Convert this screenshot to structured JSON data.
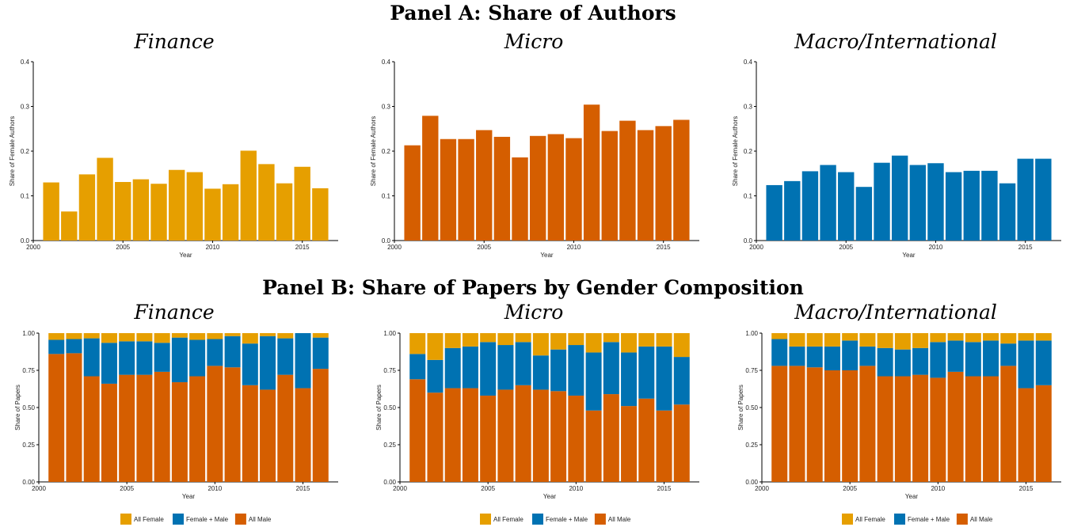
{
  "panel_a_title": "Panel A: Share of Authors",
  "panel_b_title": "Panel B: Share of Papers by Gender Composition",
  "colors": {
    "gold": "#E69F00",
    "orange": "#D55E00",
    "blue": "#0072B2"
  },
  "legend": [
    "All Female",
    "Female + Male",
    "All Male"
  ],
  "chart_data": [
    {
      "type": "bar",
      "panel": "A",
      "title": "Finance",
      "xlabel": "Year",
      "ylabel": "Share of Female Authors",
      "xlim": [
        2000,
        2017
      ],
      "ylim": [
        0,
        0.4
      ],
      "xticks": [
        2000,
        2005,
        2010,
        2015
      ],
      "yticks": [
        0.0,
        0.1,
        0.2,
        0.3,
        0.4
      ],
      "ytick_labels": [
        "0.0",
        "0.1",
        "0.2",
        "0.3",
        "0.4"
      ],
      "color": "#E69F00",
      "x": [
        2001,
        2002,
        2003,
        2004,
        2005,
        2006,
        2007,
        2008,
        2009,
        2010,
        2011,
        2012,
        2013,
        2014,
        2015,
        2016
      ],
      "values": [
        0.13,
        0.065,
        0.148,
        0.185,
        0.131,
        0.137,
        0.127,
        0.158,
        0.153,
        0.116,
        0.126,
        0.201,
        0.171,
        0.128,
        0.165,
        0.117
      ]
    },
    {
      "type": "bar",
      "panel": "A",
      "title": "Micro",
      "xlabel": "Year",
      "ylabel": "Share of Female Authors",
      "xlim": [
        2000,
        2017
      ],
      "ylim": [
        0,
        0.4
      ],
      "xticks": [
        2000,
        2005,
        2010,
        2015
      ],
      "yticks": [
        0.0,
        0.1,
        0.2,
        0.3,
        0.4
      ],
      "ytick_labels": [
        "0.0",
        "0.1",
        "0.2",
        "0.3",
        "0.4"
      ],
      "color": "#D55E00",
      "x": [
        2001,
        2002,
        2003,
        2004,
        2005,
        2006,
        2007,
        2008,
        2009,
        2010,
        2011,
        2012,
        2013,
        2014,
        2015,
        2016
      ],
      "values": [
        0.213,
        0.279,
        0.227,
        0.227,
        0.247,
        0.232,
        0.186,
        0.234,
        0.238,
        0.229,
        0.304,
        0.245,
        0.268,
        0.247,
        0.256,
        0.27
      ]
    },
    {
      "type": "bar",
      "panel": "A",
      "title": "Macro/International",
      "xlabel": "Year",
      "ylabel": "Share of Female Authors",
      "xlim": [
        2000,
        2017
      ],
      "ylim": [
        0,
        0.4
      ],
      "xticks": [
        2000,
        2005,
        2010,
        2015
      ],
      "yticks": [
        0.0,
        0.1,
        0.2,
        0.3,
        0.4
      ],
      "ytick_labels": [
        "0.0",
        "0.1",
        "0.2",
        "0.3",
        "0.4"
      ],
      "color": "#0072B2",
      "x": [
        2001,
        2002,
        2003,
        2004,
        2005,
        2006,
        2007,
        2008,
        2009,
        2010,
        2011,
        2012,
        2013,
        2014,
        2015,
        2016
      ],
      "values": [
        0.124,
        0.133,
        0.155,
        0.169,
        0.153,
        0.12,
        0.174,
        0.19,
        0.169,
        0.173,
        0.153,
        0.156,
        0.156,
        0.128,
        0.183,
        0.183
      ]
    },
    {
      "type": "bar",
      "stacked": true,
      "panel": "B",
      "title": "Finance",
      "xlabel": "Year",
      "ylabel": "Share of Papers",
      "xlim": [
        2000,
        2017
      ],
      "ylim": [
        0,
        1
      ],
      "xticks": [
        2000,
        2005,
        2010,
        2015
      ],
      "yticks": [
        0,
        0.25,
        0.5,
        0.75,
        1.0
      ],
      "ytick_labels": [
        "0.00",
        "0.25",
        "0.50",
        "0.75",
        "1.00"
      ],
      "x": [
        2001,
        2002,
        2003,
        2004,
        2005,
        2006,
        2007,
        2008,
        2009,
        2010,
        2011,
        2012,
        2013,
        2014,
        2015,
        2016
      ],
      "series": [
        {
          "name": "All Male",
          "color": "#D55E00",
          "values": [
            0.86,
            0.865,
            0.71,
            0.66,
            0.72,
            0.72,
            0.74,
            0.67,
            0.71,
            0.78,
            0.77,
            0.65,
            0.62,
            0.72,
            0.63,
            0.76
          ]
        },
        {
          "name": "Female + Male",
          "color": "#0072B2",
          "values": [
            0.095,
            0.095,
            0.255,
            0.275,
            0.225,
            0.225,
            0.195,
            0.3,
            0.245,
            0.18,
            0.21,
            0.28,
            0.36,
            0.245,
            0.37,
            0.21
          ]
        },
        {
          "name": "All Female",
          "color": "#E69F00",
          "values": [
            0.045,
            0.04,
            0.035,
            0.065,
            0.055,
            0.055,
            0.065,
            0.03,
            0.045,
            0.04,
            0.02,
            0.07,
            0.02,
            0.035,
            0.0,
            0.03
          ]
        }
      ]
    },
    {
      "type": "bar",
      "stacked": true,
      "panel": "B",
      "title": "Micro",
      "xlabel": "Year",
      "ylabel": "Share of Papers",
      "xlim": [
        2000,
        2017
      ],
      "ylim": [
        0,
        1
      ],
      "xticks": [
        2000,
        2005,
        2010,
        2015
      ],
      "yticks": [
        0,
        0.25,
        0.5,
        0.75,
        1.0
      ],
      "ytick_labels": [
        "0.00",
        "0.25",
        "0.50",
        "0.75",
        "1.00"
      ],
      "x": [
        2001,
        2002,
        2003,
        2004,
        2005,
        2006,
        2007,
        2008,
        2009,
        2010,
        2011,
        2012,
        2013,
        2014,
        2015,
        2016
      ],
      "series": [
        {
          "name": "All Male",
          "color": "#D55E00",
          "values": [
            0.69,
            0.6,
            0.63,
            0.63,
            0.58,
            0.62,
            0.65,
            0.62,
            0.61,
            0.58,
            0.48,
            0.59,
            0.51,
            0.56,
            0.48,
            0.52
          ]
        },
        {
          "name": "Female + Male",
          "color": "#0072B2",
          "values": [
            0.17,
            0.22,
            0.27,
            0.28,
            0.36,
            0.3,
            0.29,
            0.23,
            0.28,
            0.34,
            0.39,
            0.35,
            0.36,
            0.35,
            0.43,
            0.32
          ]
        },
        {
          "name": "All Female",
          "color": "#E69F00",
          "values": [
            0.14,
            0.18,
            0.1,
            0.09,
            0.06,
            0.08,
            0.06,
            0.15,
            0.11,
            0.08,
            0.13,
            0.06,
            0.13,
            0.09,
            0.09,
            0.16
          ]
        }
      ]
    },
    {
      "type": "bar",
      "stacked": true,
      "panel": "B",
      "title": "Macro/International",
      "xlabel": "Year",
      "ylabel": "Share of Papers",
      "xlim": [
        2000,
        2017
      ],
      "ylim": [
        0,
        1
      ],
      "xticks": [
        2000,
        2005,
        2010,
        2015
      ],
      "yticks": [
        0,
        0.25,
        0.5,
        0.75,
        1.0
      ],
      "ytick_labels": [
        "0.00",
        "0.25",
        "0.50",
        "0.75",
        "1.00"
      ],
      "x": [
        2001,
        2002,
        2003,
        2004,
        2005,
        2006,
        2007,
        2008,
        2009,
        2010,
        2011,
        2012,
        2013,
        2014,
        2015,
        2016
      ],
      "series": [
        {
          "name": "All Male",
          "color": "#D55E00",
          "values": [
            0.78,
            0.78,
            0.77,
            0.75,
            0.75,
            0.78,
            0.71,
            0.71,
            0.72,
            0.7,
            0.74,
            0.71,
            0.71,
            0.78,
            0.63,
            0.65
          ]
        },
        {
          "name": "Female + Male",
          "color": "#0072B2",
          "values": [
            0.18,
            0.13,
            0.14,
            0.16,
            0.2,
            0.13,
            0.19,
            0.18,
            0.18,
            0.24,
            0.21,
            0.23,
            0.24,
            0.15,
            0.32,
            0.3
          ]
        },
        {
          "name": "All Female",
          "color": "#E69F00",
          "values": [
            0.04,
            0.09,
            0.09,
            0.09,
            0.05,
            0.09,
            0.1,
            0.11,
            0.1,
            0.06,
            0.05,
            0.06,
            0.05,
            0.07,
            0.05,
            0.05
          ]
        }
      ]
    }
  ]
}
